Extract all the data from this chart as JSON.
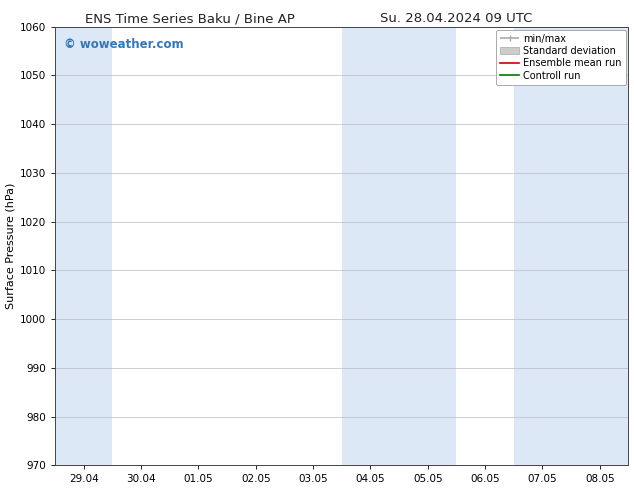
{
  "title_left": "ENS Time Series Baku / Bine AP",
  "title_right": "Su. 28.04.2024 09 UTC",
  "ylabel": "Surface Pressure (hPa)",
  "ylim": [
    970,
    1060
  ],
  "yticks": [
    970,
    980,
    990,
    1000,
    1010,
    1020,
    1030,
    1040,
    1050,
    1060
  ],
  "xtick_labels": [
    "29.04",
    "30.04",
    "01.05",
    "02.05",
    "03.05",
    "04.05",
    "05.05",
    "06.05",
    "07.05",
    "08.05"
  ],
  "shade_color": "#dce8f5",
  "background_color": "#ffffff",
  "watermark_text": "© woweather.com",
  "watermark_color": "#3377bb",
  "legend_entries": [
    {
      "label": "min/max",
      "color": "#aaaaaa",
      "lw": 1.2,
      "style": "minmax"
    },
    {
      "label": "Standard deviation",
      "color": "#cccccc",
      "lw": 5,
      "style": "band"
    },
    {
      "label": "Ensemble mean run",
      "color": "#cc0000",
      "lw": 1.2,
      "style": "line"
    },
    {
      "label": "Controll run",
      "color": "#007700",
      "lw": 1.2,
      "style": "line"
    }
  ],
  "figsize": [
    6.34,
    4.9
  ],
  "dpi": 100,
  "title_fontsize": 9.5,
  "ylabel_fontsize": 8,
  "tick_fontsize": 7.5,
  "watermark_fontsize": 8.5,
  "legend_fontsize": 7
}
